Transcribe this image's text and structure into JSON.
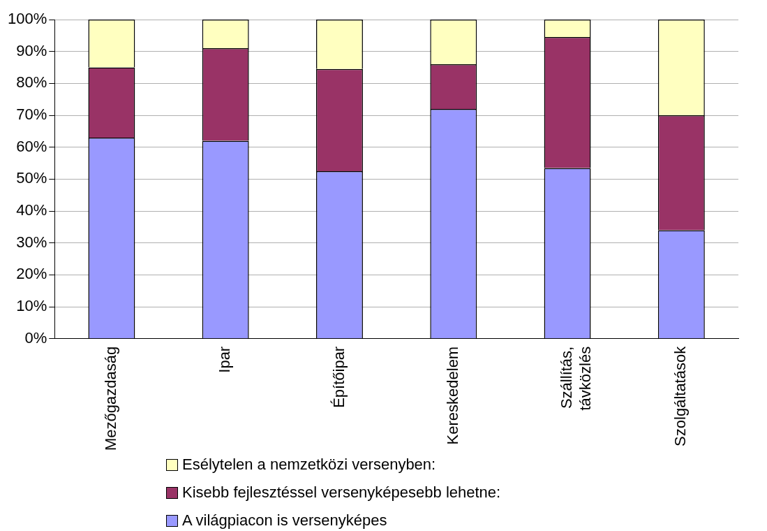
{
  "chart_data": {
    "type": "bar",
    "stacked": true,
    "categories": [
      "Mezőgazdaság",
      "Ipar",
      "Építőipar",
      "Kereskedelem",
      "Szállítás, távközlés",
      "Szolgáltatások"
    ],
    "series": [
      {
        "name": "A világpiacon is versenyképes",
        "color": "#9999ff",
        "values": [
          63,
          62,
          52.5,
          72,
          53.5,
          34
        ]
      },
      {
        "name": "Kisebb fejlesztéssel versenyképesebb lehetne:",
        "color": "#993366",
        "values": [
          22,
          29,
          32,
          14,
          41,
          36
        ]
      },
      {
        "name": "Esélytelen a nemzetközi versenyben:",
        "color": "#ffffc0",
        "values": [
          15,
          9,
          15.5,
          14,
          5.5,
          30
        ]
      }
    ],
    "ylim": [
      0,
      100
    ],
    "yticks": [
      {
        "value": 0,
        "label": "0%"
      },
      {
        "value": 10,
        "label": "10%"
      },
      {
        "value": 20,
        "label": "20%"
      },
      {
        "value": 30,
        "label": "30%"
      },
      {
        "value": 40,
        "label": "40%"
      },
      {
        "value": 50,
        "label": "50%"
      },
      {
        "value": 60,
        "label": "60%"
      },
      {
        "value": 70,
        "label": "70%"
      },
      {
        "value": 80,
        "label": "80%"
      },
      {
        "value": 90,
        "label": "90%"
      },
      {
        "value": 100,
        "label": "100%"
      }
    ],
    "grid": "y",
    "legend": "bottom"
  }
}
